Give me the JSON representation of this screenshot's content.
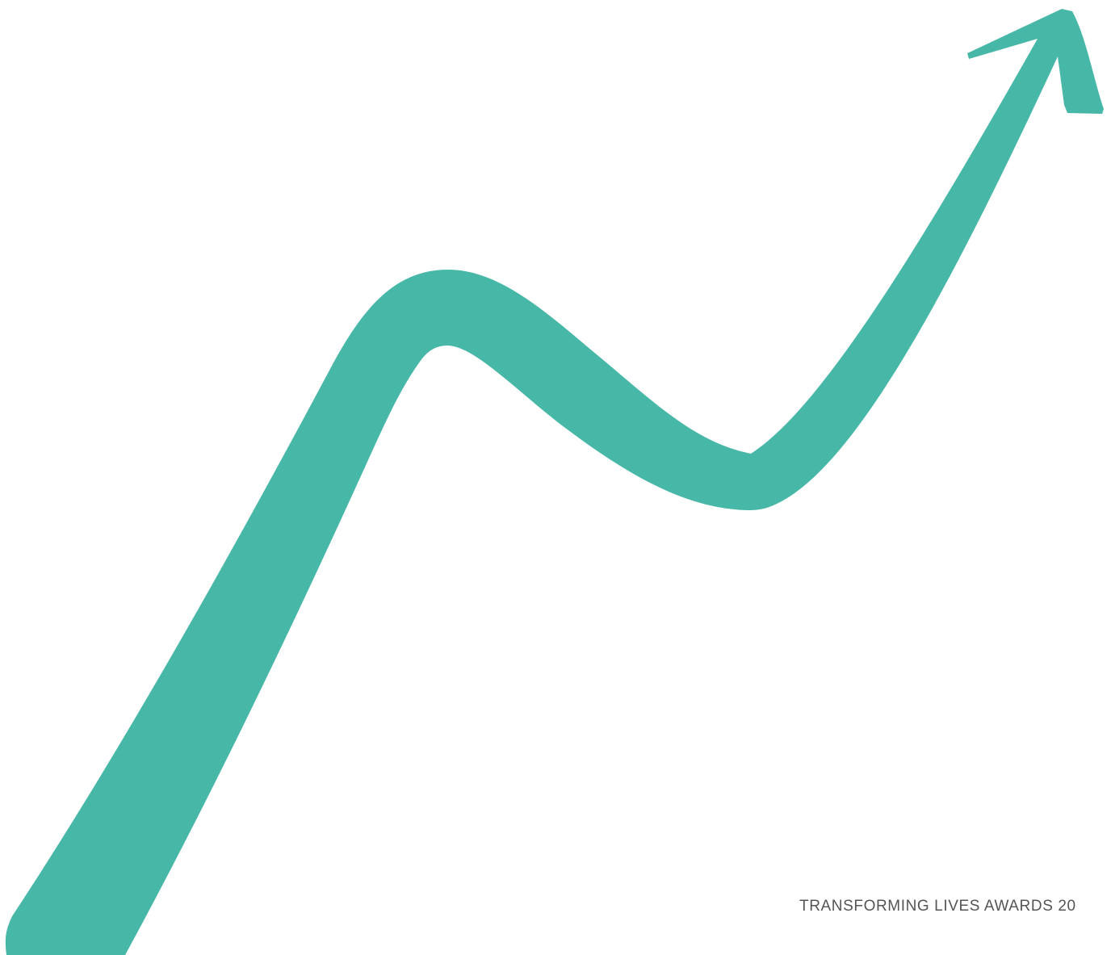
{
  "footer": {
    "text": "TRANSFORMING LIVES AWARDS 20"
  }
}
